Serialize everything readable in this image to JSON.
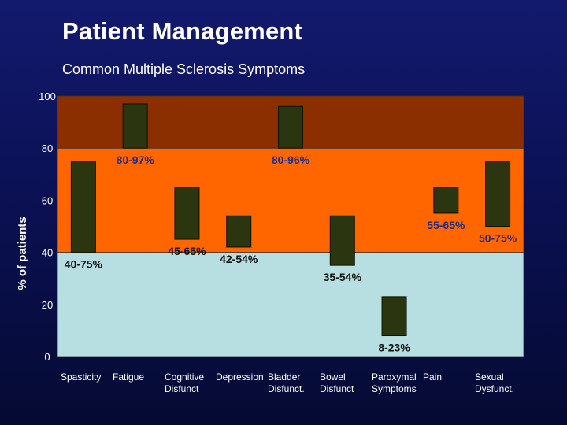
{
  "slide": {
    "title": "Patient Management",
    "subtitle": "Common Multiple Sclerosis Symptoms"
  },
  "colors": {
    "band_high": "#8b2e00",
    "band_mid": "#ff6600",
    "band_low": "#b7dfe2",
    "bar_fill": "#2b3510",
    "label_blue": "#1c2d8a",
    "label_dark": "#111111"
  },
  "chart_data": {
    "type": "bar",
    "title": "",
    "xlabel": "",
    "ylabel": "% of patients",
    "ylim": [
      0,
      100
    ],
    "yticks": [
      "0",
      "20",
      "40",
      "60",
      "80",
      "100"
    ],
    "bands": [
      {
        "from": 0,
        "to": 40,
        "color": "#b7dfe2"
      },
      {
        "from": 40,
        "to": 80,
        "color": "#ff6600"
      },
      {
        "from": 80,
        "to": 100,
        "color": "#8b2e00"
      }
    ],
    "categories": [
      "Spasticity",
      "Fatigue",
      "Cognitive\nDisfunct",
      "Depression",
      "Bladder\nDisfunct.",
      "Bowel\nDisfunct",
      "Paroxymal\nSymptoms",
      "Pain",
      "Sexual\nDysfunct."
    ],
    "ranges": [
      {
        "low": 40,
        "high": 75,
        "label": "40-75%"
      },
      {
        "low": 80,
        "high": 97,
        "label": "80-97%"
      },
      {
        "low": 45,
        "high": 65,
        "label": "45-65%"
      },
      {
        "low": 42,
        "high": 54,
        "label": "42-54%"
      },
      {
        "low": 80,
        "high": 96,
        "label": "80-96%"
      },
      {
        "low": 35,
        "high": 54,
        "label": "35-54%"
      },
      {
        "low": 8,
        "high": 23,
        "label": "8-23%"
      },
      {
        "low": 55,
        "high": 65,
        "label": "55-65%"
      },
      {
        "low": 50,
        "high": 75,
        "label": "50-75%"
      }
    ],
    "grid": false,
    "legend": "none"
  }
}
